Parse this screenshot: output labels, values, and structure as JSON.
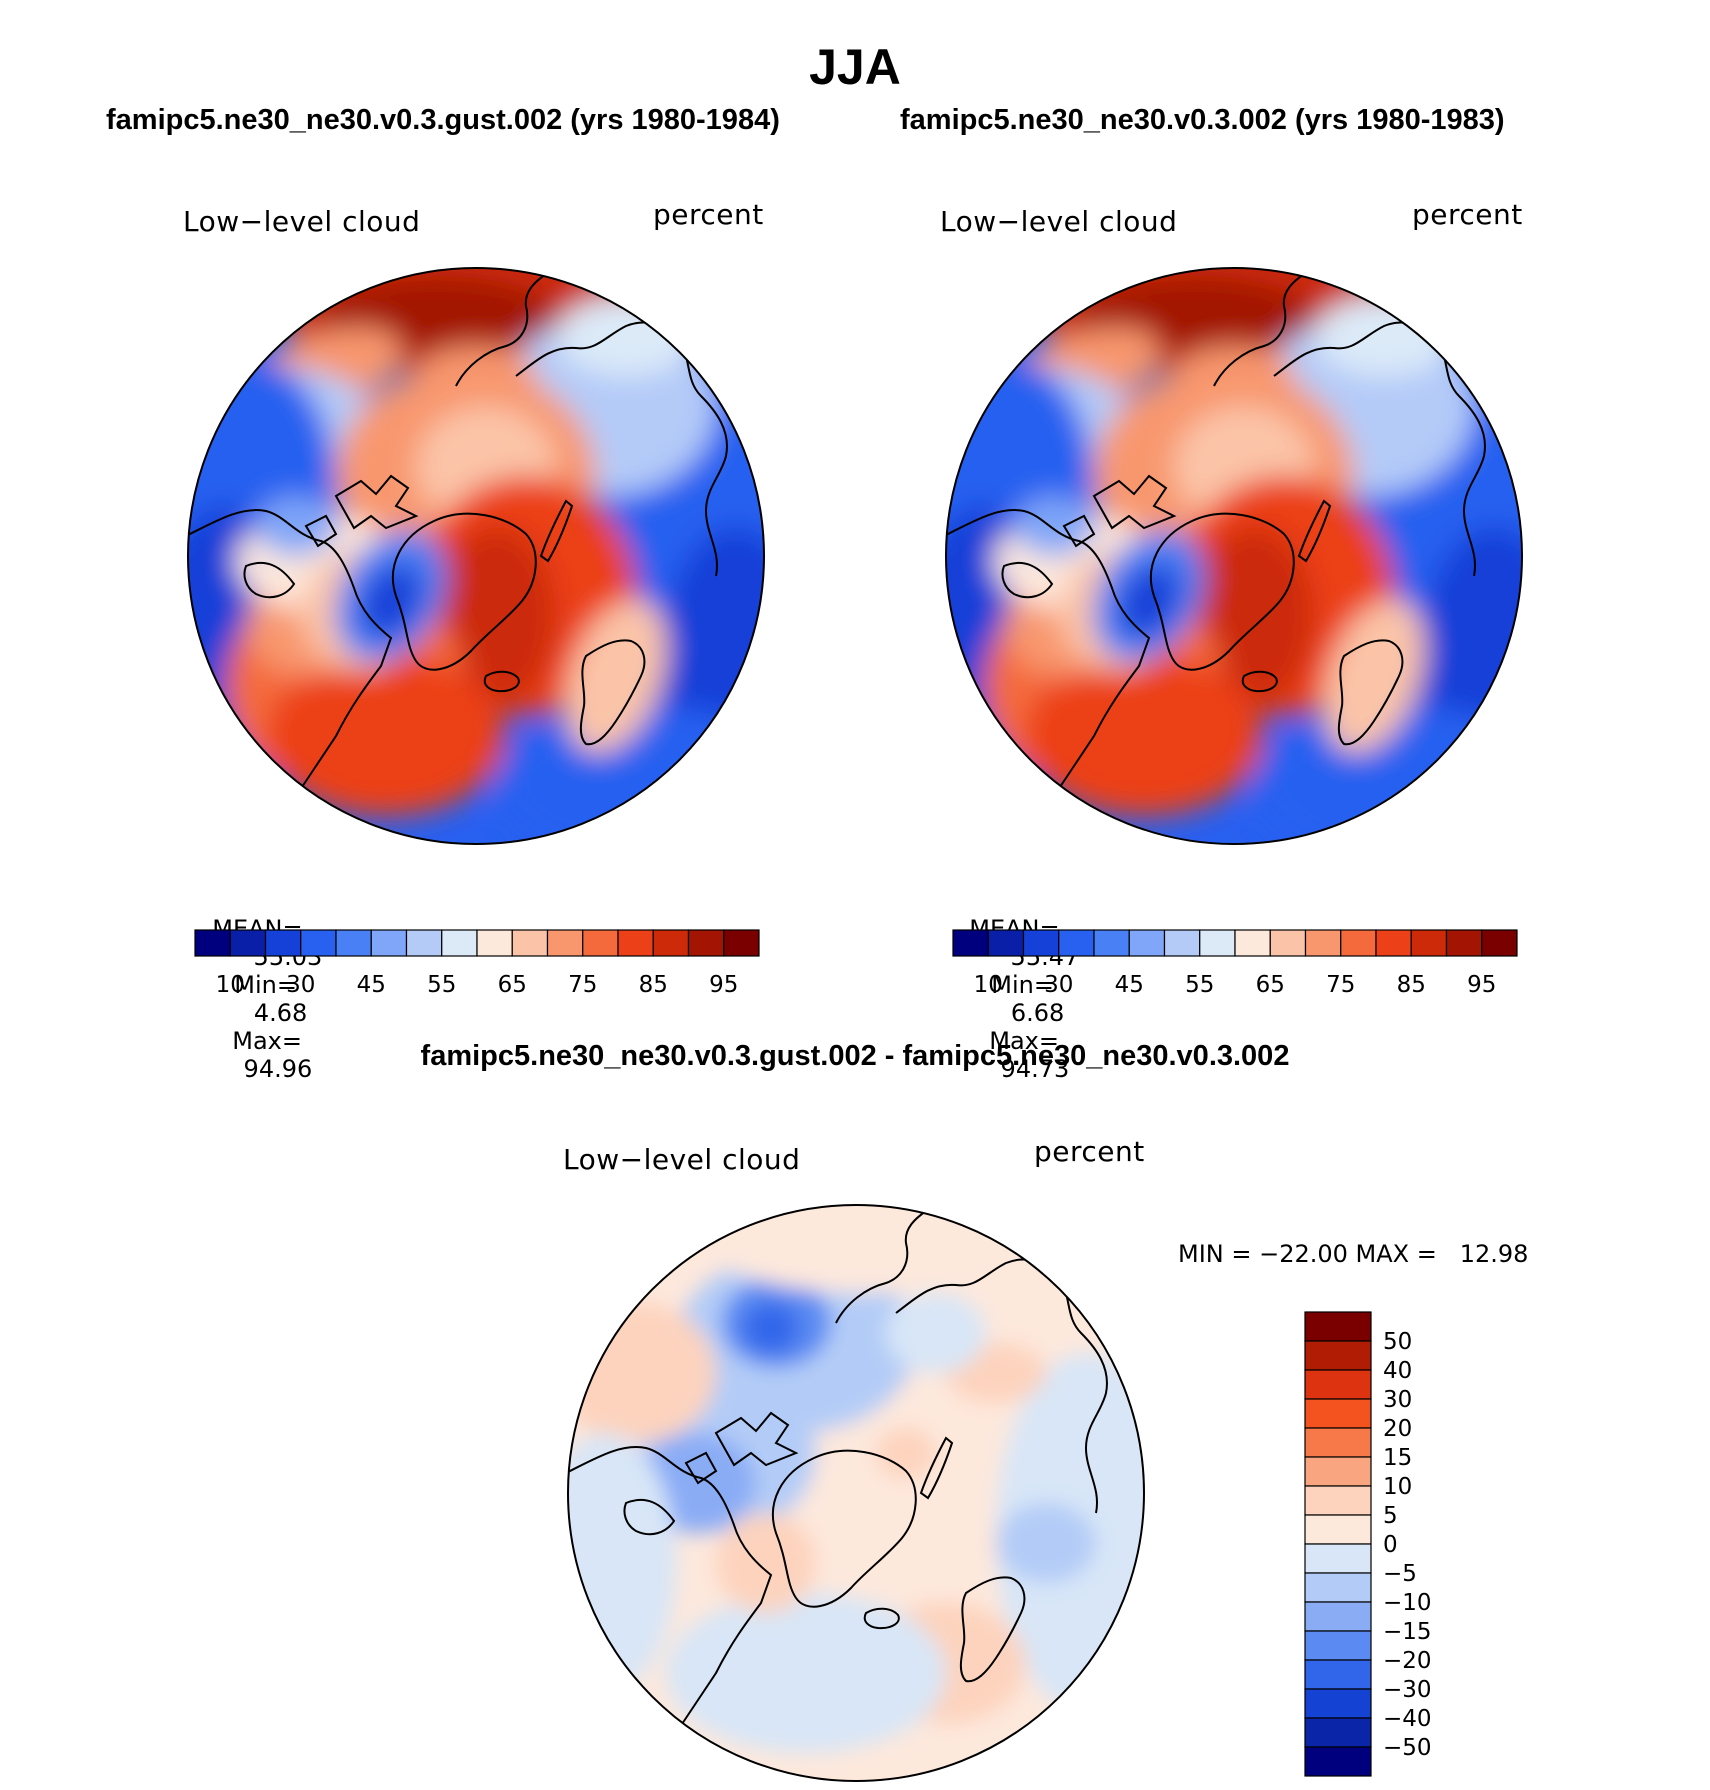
{
  "figure": {
    "title": "JJA"
  },
  "panels": [
    {
      "case_title": "famipc5.ne30_ne30.v0.3.gust.002 (yrs 1980-1984)",
      "variable": "Low−level cloud",
      "units": "percent",
      "stats": {
        "mean_label": "MEAN=",
        "mean": "55.03",
        "min_label": "Min=",
        "min": "4.68",
        "max_label": "Max=",
        "max": "94.96"
      }
    },
    {
      "case_title": "famipc5.ne30_ne30.v0.3.002 (yrs 1980-1983)",
      "variable": "Low−level cloud",
      "units": "percent",
      "stats": {
        "mean_label": "MEAN=",
        "mean": "55.47",
        "min_label": "Min=",
        "min": "6.68",
        "max_label": "Max=",
        "max": "94.73"
      }
    },
    {
      "case_title": "famipc5.ne30_ne30.v0.3.gust.002 - famipc5.ne30_ne30.v0.3.002",
      "variable": "Low−level cloud",
      "units": "percent",
      "stats_text": "MIN = −22.00 MAX =   12.98"
    }
  ],
  "colorbars": {
    "absolute": {
      "tick_labels": [
        "10",
        "30",
        "45",
        "55",
        "65",
        "75",
        "85",
        "95"
      ],
      "colors": [
        "#00007f",
        "#0a1fa8",
        "#1541d8",
        "#2860f0",
        "#4a80f5",
        "#7fa6f8",
        "#b4cbf8",
        "#dceaf8",
        "#fde8dc",
        "#fbc4a8",
        "#f8976e",
        "#f46a3d",
        "#ec4118",
        "#cc2a08",
        "#a31502",
        "#7a0000"
      ]
    },
    "difference": {
      "tick_labels": [
        "50",
        "40",
        "30",
        "20",
        "15",
        "10",
        "5",
        "0",
        "−5",
        "−10",
        "−15",
        "−20",
        "−30",
        "−40",
        "−50"
      ],
      "colors": [
        "#7a0000",
        "#b01c04",
        "#dd3310",
        "#f4521f",
        "#f7794a",
        "#f9a57f",
        "#fdd3bd",
        "#fde8dc",
        "#d8e6f7",
        "#b3ccf7",
        "#8aacf5",
        "#5a8af2",
        "#3266ea",
        "#1442d2",
        "#0b25a8",
        "#00007f"
      ]
    }
  },
  "map": {
    "projection": "polar stereographic (north)",
    "region": "Arctic, poleward of ~40N"
  }
}
